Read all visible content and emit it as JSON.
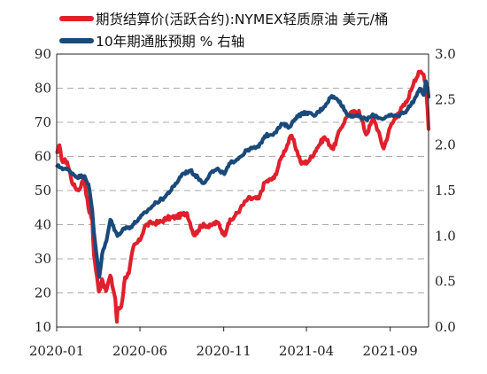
{
  "chart_data": {
    "type": "line",
    "legend": {
      "placement": "top-left",
      "entries": [
        {
          "label": "期货结算价(活跃合约):NYMEX轻质原油 美元/桶",
          "color": "#e0202c"
        },
        {
          "label": "10年期通胀预期 % 右轴",
          "color": "#1a4a7a"
        }
      ]
    },
    "x_ticks": [
      "2020-01",
      "2020-06",
      "2020-11",
      "2021-04",
      "2021-09"
    ],
    "x_tick_dates": [
      "2020-01-01",
      "2020-06-01",
      "2020-11-01",
      "2021-04-01",
      "2021-09-01"
    ],
    "x_range": [
      "2020-01-01",
      "2021-11-10"
    ],
    "y_left": {
      "ticks": [
        "10",
        "20",
        "30",
        "40",
        "50",
        "60",
        "70",
        "80",
        "90"
      ],
      "range": [
        10,
        90
      ]
    },
    "y_right": {
      "ticks": [
        "0.0",
        "0.5",
        "1.0",
        "1.5",
        "2.0",
        "2.5",
        "3.0"
      ],
      "range": [
        0,
        3.0
      ]
    },
    "grid": "horizontal dashed",
    "series": [
      {
        "name": "期货结算价(活跃合约):NYMEX轻质原油 美元/桶",
        "axis": "left",
        "color": "#e0202c",
        "points": [
          [
            "2020-01-02",
            61.2
          ],
          [
            "2020-01-06",
            63.3
          ],
          [
            "2020-01-10",
            59.0
          ],
          [
            "2020-01-20",
            58.4
          ],
          [
            "2020-01-31",
            51.6
          ],
          [
            "2020-02-10",
            50.0
          ],
          [
            "2020-02-20",
            53.8
          ],
          [
            "2020-02-28",
            44.8
          ],
          [
            "2020-03-06",
            41.3
          ],
          [
            "2020-03-09",
            31.1
          ],
          [
            "2020-03-18",
            20.4
          ],
          [
            "2020-03-24",
            24.0
          ],
          [
            "2020-03-31",
            20.5
          ],
          [
            "2020-04-08",
            25.1
          ],
          [
            "2020-04-17",
            18.3
          ],
          [
            "2020-04-20",
            11.5
          ],
          [
            "2020-04-21",
            15.0
          ],
          [
            "2020-04-28",
            16.0
          ],
          [
            "2020-05-05",
            24.6
          ],
          [
            "2020-05-12",
            25.8
          ],
          [
            "2020-05-20",
            33.5
          ],
          [
            "2020-06-01",
            35.4
          ],
          [
            "2020-06-10",
            39.6
          ],
          [
            "2020-06-22",
            40.5
          ],
          [
            "2020-07-06",
            40.6
          ],
          [
            "2020-07-21",
            41.9
          ],
          [
            "2020-08-05",
            42.2
          ],
          [
            "2020-08-26",
            43.4
          ],
          [
            "2020-09-08",
            36.8
          ],
          [
            "2020-09-15",
            38.3
          ],
          [
            "2020-09-25",
            40.3
          ],
          [
            "2020-10-05",
            39.2
          ],
          [
            "2020-10-12",
            40.2
          ],
          [
            "2020-10-22",
            40.6
          ],
          [
            "2020-11-02",
            36.8
          ],
          [
            "2020-11-09",
            40.3
          ],
          [
            "2020-11-20",
            42.2
          ],
          [
            "2020-12-01",
            44.6
          ],
          [
            "2020-12-15",
            47.6
          ],
          [
            "2021-01-04",
            47.6
          ],
          [
            "2021-01-15",
            52.4
          ],
          [
            "2021-02-01",
            53.6
          ],
          [
            "2021-02-15",
            60.0
          ],
          [
            "2021-03-05",
            66.1
          ],
          [
            "2021-03-23",
            57.8
          ],
          [
            "2021-04-05",
            58.6
          ],
          [
            "2021-04-20",
            62.4
          ],
          [
            "2021-05-04",
            65.7
          ],
          [
            "2021-05-20",
            62.1
          ],
          [
            "2021-06-01",
            67.7
          ],
          [
            "2021-06-15",
            72.1
          ],
          [
            "2021-07-06",
            73.4
          ],
          [
            "2021-07-19",
            66.4
          ],
          [
            "2021-08-02",
            71.3
          ],
          [
            "2021-08-20",
            62.3
          ],
          [
            "2021-09-01",
            68.6
          ],
          [
            "2021-09-15",
            72.6
          ],
          [
            "2021-10-01",
            75.9
          ],
          [
            "2021-10-15",
            82.3
          ],
          [
            "2021-10-25",
            84.7
          ],
          [
            "2021-11-01",
            84.0
          ],
          [
            "2021-11-05",
            81.3
          ],
          [
            "2021-11-08",
            74.0
          ],
          [
            "2021-11-10",
            68.0
          ]
        ]
      },
      {
        "name": "10年期通胀预期 % 右轴",
        "axis": "right",
        "color": "#1a4a7a",
        "points": [
          [
            "2020-01-02",
            1.77
          ],
          [
            "2020-01-10",
            1.75
          ],
          [
            "2020-01-24",
            1.72
          ],
          [
            "2020-02-07",
            1.65
          ],
          [
            "2020-02-21",
            1.66
          ],
          [
            "2020-02-28",
            1.57
          ],
          [
            "2020-03-06",
            1.28
          ],
          [
            "2020-03-09",
            1.04
          ],
          [
            "2020-03-19",
            0.55
          ],
          [
            "2020-03-24",
            0.8
          ],
          [
            "2020-04-01",
            0.95
          ],
          [
            "2020-04-08",
            1.18
          ],
          [
            "2020-04-21",
            1.0
          ],
          [
            "2020-05-01",
            1.08
          ],
          [
            "2020-05-15",
            1.1
          ],
          [
            "2020-06-01",
            1.2
          ],
          [
            "2020-06-15",
            1.28
          ],
          [
            "2020-07-01",
            1.37
          ],
          [
            "2020-07-15",
            1.42
          ],
          [
            "2020-08-03",
            1.55
          ],
          [
            "2020-08-17",
            1.68
          ],
          [
            "2020-09-01",
            1.72
          ],
          [
            "2020-09-15",
            1.64
          ],
          [
            "2020-09-25",
            1.58
          ],
          [
            "2020-10-09",
            1.7
          ],
          [
            "2020-10-23",
            1.73
          ],
          [
            "2020-11-02",
            1.68
          ],
          [
            "2020-11-13",
            1.8
          ],
          [
            "2020-12-01",
            1.87
          ],
          [
            "2020-12-15",
            1.95
          ],
          [
            "2021-01-04",
            1.98
          ],
          [
            "2021-01-15",
            2.1
          ],
          [
            "2021-02-01",
            2.13
          ],
          [
            "2021-02-16",
            2.23
          ],
          [
            "2021-03-01",
            2.2
          ],
          [
            "2021-03-15",
            2.32
          ],
          [
            "2021-04-01",
            2.36
          ],
          [
            "2021-04-15",
            2.32
          ],
          [
            "2021-05-03",
            2.42
          ],
          [
            "2021-05-17",
            2.54
          ],
          [
            "2021-06-01",
            2.48
          ],
          [
            "2021-06-15",
            2.33
          ],
          [
            "2021-07-01",
            2.32
          ],
          [
            "2021-07-19",
            2.28
          ],
          [
            "2021-08-02",
            2.33
          ],
          [
            "2021-08-16",
            2.29
          ],
          [
            "2021-09-01",
            2.32
          ],
          [
            "2021-09-15",
            2.32
          ],
          [
            "2021-10-01",
            2.38
          ],
          [
            "2021-10-15",
            2.5
          ],
          [
            "2021-10-25",
            2.62
          ],
          [
            "2021-11-01",
            2.55
          ],
          [
            "2021-11-05",
            2.7
          ],
          [
            "2021-11-08",
            2.64
          ],
          [
            "2021-11-10",
            2.53
          ]
        ]
      }
    ]
  }
}
